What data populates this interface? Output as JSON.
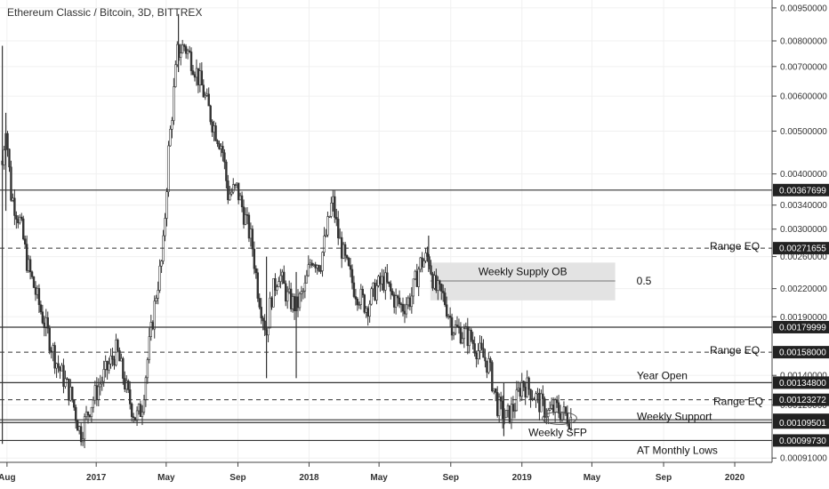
{
  "chart_data": {
    "type": "candlestick",
    "title": "Ethereum Classic / Bitcoin, 3D, BITTREX",
    "y_scale": "log",
    "ylim": [
      0.00089,
      0.0099
    ],
    "xlim": [
      "2016-07-20",
      "2020-03-05"
    ],
    "y_ticks": [
      "0.00950000",
      "0.00800000",
      "0.00700000",
      "0.00600000",
      "0.00500000",
      "0.00400000",
      "0.00340000",
      "0.00300000",
      "0.00260000",
      "0.00220000",
      "0.00190000",
      "0.00140000",
      "0.00120000",
      "0.00091000"
    ],
    "x_ticks": [
      {
        "label": "Aug",
        "date": "2016-08-01"
      },
      {
        "label": "2017",
        "date": "2017-01-01"
      },
      {
        "label": "May",
        "date": "2017-05-01"
      },
      {
        "label": "Sep",
        "date": "2017-09-01"
      },
      {
        "label": "2018",
        "date": "2018-01-01"
      },
      {
        "label": "May",
        "date": "2018-05-01"
      },
      {
        "label": "Sep",
        "date": "2018-09-01"
      },
      {
        "label": "2019",
        "date": "2019-01-01"
      },
      {
        "label": "May",
        "date": "2019-05-01"
      },
      {
        "label": "Sep",
        "date": "2019-09-01"
      },
      {
        "label": "2020",
        "date": "2020-01-01"
      }
    ],
    "price_path": [
      [
        "2016-07-24",
        0.0042
      ],
      [
        "2016-07-30",
        0.0052
      ],
      [
        "2016-08-08",
        0.0036
      ],
      [
        "2016-08-24",
        0.0031
      ],
      [
        "2016-09-05",
        0.0025
      ],
      [
        "2016-10-01",
        0.0019
      ],
      [
        "2016-10-25",
        0.0015
      ],
      [
        "2016-11-20",
        0.00125
      ],
      [
        "2016-12-05",
        0.00103
      ],
      [
        "2016-12-20",
        0.00118
      ],
      [
        "2017-01-05",
        0.00132
      ],
      [
        "2017-01-20",
        0.00145
      ],
      [
        "2017-02-05",
        0.0016
      ],
      [
        "2017-02-25",
        0.00125
      ],
      [
        "2017-03-10",
        0.00112
      ],
      [
        "2017-03-20",
        0.00118
      ],
      [
        "2017-04-01",
        0.0016
      ],
      [
        "2017-04-15",
        0.0022
      ],
      [
        "2017-04-25",
        0.0026
      ],
      [
        "2017-05-05",
        0.0045
      ],
      [
        "2017-05-20",
        0.0075
      ],
      [
        "2017-06-01",
        0.0078
      ],
      [
        "2017-06-15",
        0.0072
      ],
      [
        "2017-07-01",
        0.0063
      ],
      [
        "2017-07-20",
        0.0052
      ],
      [
        "2017-08-05",
        0.0046
      ],
      [
        "2017-08-15",
        0.0036
      ],
      [
        "2017-08-30",
        0.0037
      ],
      [
        "2017-09-10",
        0.0033
      ],
      [
        "2017-09-25",
        0.0028
      ],
      [
        "2017-10-05",
        0.0022
      ],
      [
        "2017-10-20",
        0.00175
      ],
      [
        "2017-10-28",
        0.0021
      ],
      [
        "2017-11-10",
        0.0024
      ],
      [
        "2017-11-25",
        0.0021
      ],
      [
        "2017-12-10",
        0.002
      ],
      [
        "2017-12-25",
        0.0022
      ],
      [
        "2018-01-05",
        0.0026
      ],
      [
        "2018-01-20",
        0.0025
      ],
      [
        "2018-02-01",
        0.003
      ],
      [
        "2018-02-10",
        0.0035
      ],
      [
        "2018-02-20",
        0.0029
      ],
      [
        "2018-03-05",
        0.0025
      ],
      [
        "2018-03-20",
        0.0022
      ],
      [
        "2018-04-10",
        0.002
      ],
      [
        "2018-04-25",
        0.0022
      ],
      [
        "2018-05-10",
        0.0023
      ],
      [
        "2018-05-25",
        0.0021
      ],
      [
        "2018-06-10",
        0.002
      ],
      [
        "2018-06-25",
        0.0021
      ],
      [
        "2018-07-10",
        0.0025
      ],
      [
        "2018-07-25",
        0.0026
      ],
      [
        "2018-08-05",
        0.0022
      ],
      [
        "2018-08-20",
        0.0021
      ],
      [
        "2018-09-05",
        0.0018
      ],
      [
        "2018-09-20",
        0.00175
      ],
      [
        "2018-10-05",
        0.0017
      ],
      [
        "2018-10-20",
        0.00158
      ],
      [
        "2018-11-05",
        0.00148
      ],
      [
        "2018-11-20",
        0.0012
      ],
      [
        "2018-12-05",
        0.00112
      ],
      [
        "2018-12-20",
        0.0012
      ],
      [
        "2019-01-01",
        0.00135
      ],
      [
        "2019-01-15",
        0.0013
      ],
      [
        "2019-01-30",
        0.00122
      ],
      [
        "2019-02-15",
        0.00115
      ],
      [
        "2019-03-01",
        0.00118
      ],
      [
        "2019-03-15",
        0.00114
      ],
      [
        "2019-03-28",
        0.00112
      ]
    ],
    "spikes": [
      {
        "date": "2016-07-24",
        "high": 0.0078,
        "low": 0.00098
      },
      {
        "date": "2016-07-30",
        "high": 0.0055,
        "low": 0.0033
      },
      {
        "date": "2017-05-22",
        "high": 0.0092,
        "low": 0.0068
      },
      {
        "date": "2017-10-20",
        "high": 0.0026,
        "low": 0.00138
      },
      {
        "date": "2017-12-10",
        "high": 0.0024,
        "low": 0.00138
      },
      {
        "date": "2018-07-25",
        "high": 0.0029,
        "low": 0.0024
      },
      {
        "date": "2018-12-01",
        "high": 0.00135,
        "low": 0.00102
      }
    ],
    "levels": [
      {
        "value": 0.00367699,
        "label": "0.00367699",
        "style": "solid",
        "text": ""
      },
      {
        "value": 0.00271655,
        "label": "0.00271655",
        "style": "dashed",
        "text": "Range EQ"
      },
      {
        "value": 0.00179999,
        "label": "0.00179999",
        "style": "solid",
        "text": ""
      },
      {
        "value": 0.00158,
        "label": "0.00158000",
        "style": "dashed",
        "text": "Range EQ"
      },
      {
        "value": 0.001348,
        "label": "0.00134800",
        "style": "solid",
        "text": "Year Open"
      },
      {
        "value": 0.00123272,
        "label": "0.00123272",
        "style": "dashed",
        "text": "Range EQ"
      },
      {
        "value": 0.0011107,
        "label": "0.00111070",
        "style": "solid",
        "text": ""
      },
      {
        "value": 0.00109501,
        "label": "0.00109501",
        "style": "solid",
        "text": "Weekly Support"
      },
      {
        "value": 0.0009973,
        "label": "0.00099730",
        "style": "solid",
        "text": "AT Monthly Lows"
      }
    ],
    "supply_zone": {
      "text": "Weekly Supply OB",
      "from": "2018-07-28",
      "to": "2019-06-10",
      "high": 0.00252,
      "low": 0.00207,
      "mid_label": "0.5",
      "mid": 0.00229
    },
    "sfp": {
      "text": "Weekly SFP",
      "from": "2019-02-05",
      "to": "2019-04-05",
      "value": 0.00112
    }
  }
}
